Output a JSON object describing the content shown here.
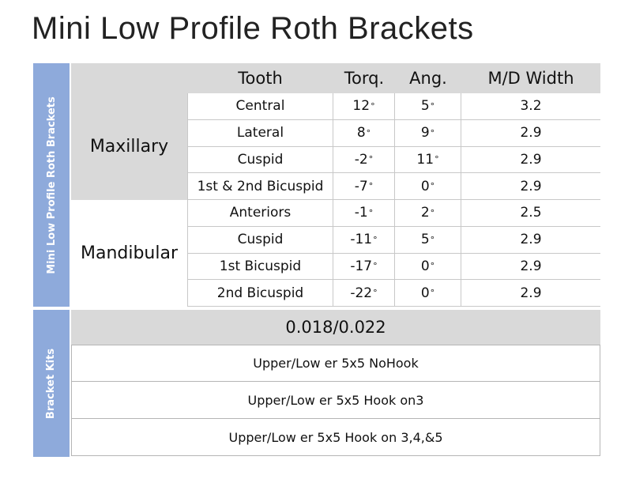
{
  "title": "Mini Low Profile Roth Brackets",
  "sidebar": {
    "brackets_label": "Mini Low Profile Roth Brackets",
    "kits_label": "Bracket Kits"
  },
  "table": {
    "headers": {
      "tooth": "Tooth",
      "torque": "Torq.",
      "angulation": "Ang.",
      "width": "M/D Width"
    },
    "groups": {
      "maxillary": "Maxillary",
      "mandibular": "Mandibular"
    },
    "rows": [
      {
        "tooth": "Central",
        "torque": "12",
        "angulation": "5",
        "width": "3.2"
      },
      {
        "tooth": "Lateral",
        "torque": "8",
        "angulation": "9",
        "width": "2.9"
      },
      {
        "tooth": "Cuspid",
        "torque": "-2",
        "angulation": "11",
        "width": "2.9"
      },
      {
        "tooth": "1st & 2nd Bicuspid",
        "torque": "-7",
        "angulation": "0",
        "width": "2.9"
      },
      {
        "tooth": "Anteriors",
        "torque": "-1",
        "angulation": "2",
        "width": "2.5"
      },
      {
        "tooth": "Cuspid",
        "torque": "-11",
        "angulation": "5",
        "width": "2.9"
      },
      {
        "tooth": "1st Bicuspid",
        "torque": "-17",
        "angulation": "0",
        "width": "2.9"
      },
      {
        "tooth": "2nd Bicuspid",
        "torque": "-22",
        "angulation": "0",
        "width": "2.9"
      }
    ],
    "degree_symbol": "°"
  },
  "slot_size": "0.018/0.022",
  "kits": [
    "Upper/Low er 5x5 NoHook",
    "Upper/Low er 5x5 Hook on3",
    "Upper/Low er 5x5 Hook on 3,4,&5"
  ],
  "colors": {
    "sidebar": "#8eaadb",
    "header_bg": "#d9d9d9",
    "border": "#c8c8c8"
  }
}
